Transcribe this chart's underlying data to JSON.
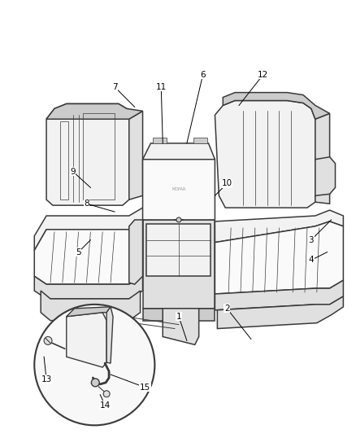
{
  "background_color": "#ffffff",
  "line_color": "#3a3a3a",
  "label_color": "#000000",
  "fig_width": 4.38,
  "fig_height": 5.33,
  "dpi": 100,
  "label_fontsize": 7.5,
  "lw_main": 1.1,
  "lw_thin": 0.5,
  "fill_light": "#f2f2f2",
  "fill_mid": "#e0e0e0",
  "fill_dark": "#cccccc",
  "fill_white": "#fafafa"
}
